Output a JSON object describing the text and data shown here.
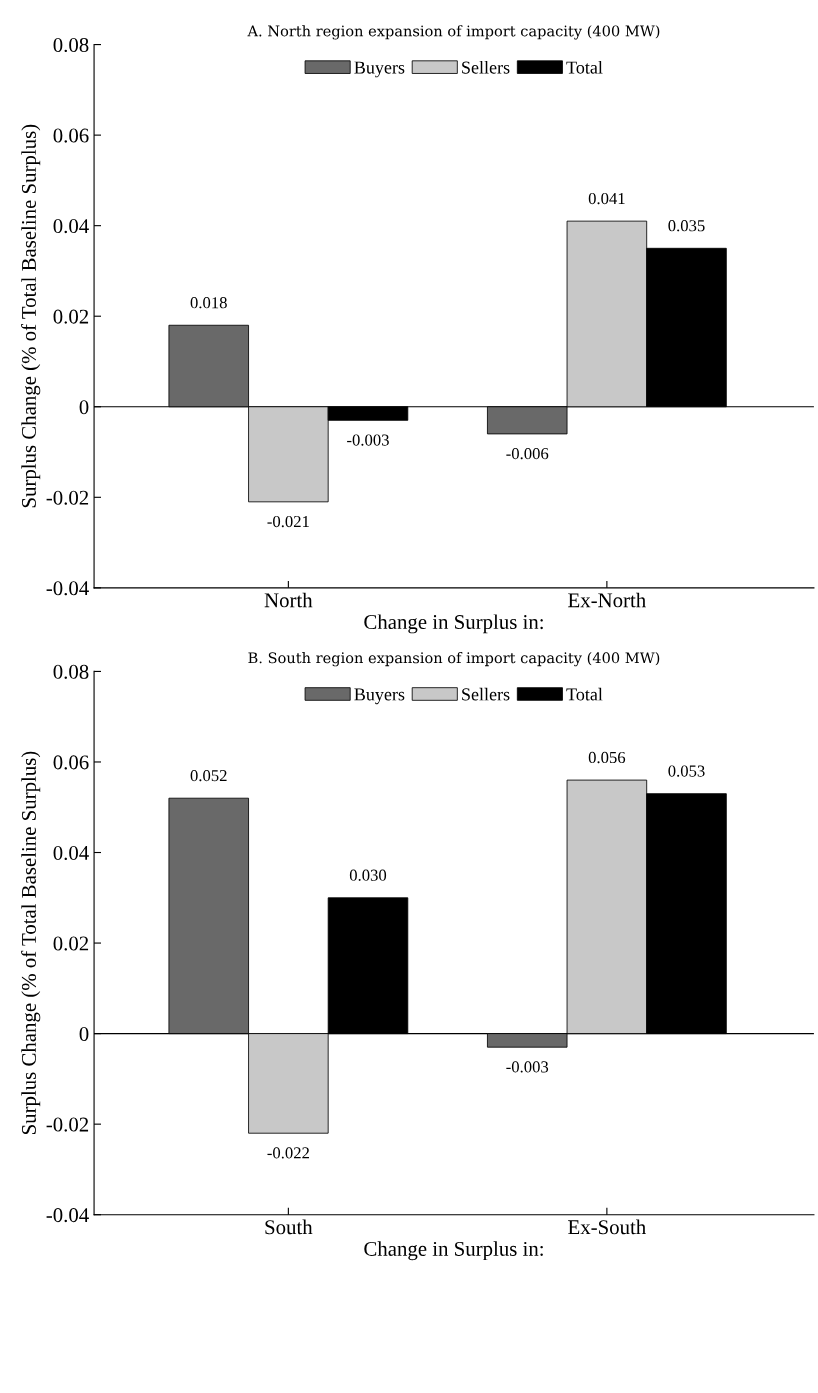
{
  "chart_data": [
    {
      "type": "bar",
      "title": "A. North region expansion of import capacity (400 MW)",
      "xlabel": "Change in Surplus in:",
      "ylabel": "Surplus Change (% of Total Baseline Surplus)",
      "categories": [
        "North",
        "Ex-North"
      ],
      "series": [
        {
          "name": "Buyers",
          "color": "#696969",
          "values": [
            0.018,
            -0.006
          ]
        },
        {
          "name": "Sellers",
          "color": "#c8c8c8",
          "values": [
            -0.021,
            0.041
          ]
        },
        {
          "name": "Total",
          "color": "#000000",
          "values": [
            -0.003,
            0.035
          ]
        }
      ],
      "ylim": [
        -0.04,
        0.08
      ],
      "yticks": [
        {
          "value": -0.04,
          "label": "-0.04"
        },
        {
          "value": -0.02,
          "label": "-0.02"
        },
        0,
        {
          "value": 0.02,
          "label": "0.02"
        },
        {
          "value": 0.04,
          "label": "0.04"
        },
        {
          "value": 0.06,
          "label": "0.06"
        },
        {
          "value": 0.08,
          "label": "0.08"
        }
      ],
      "value_labels": [
        [
          "0.018",
          "-0.006"
        ],
        [
          "-0.021",
          "0.041"
        ],
        [
          "-0.003",
          "0.035"
        ]
      ],
      "ref_lines": [
        {
          "axis": "y",
          "value": 0,
          "label": null,
          "color": "#000000"
        }
      ],
      "legend": "top",
      "grid": false
    },
    {
      "type": "bar",
      "title": "B. South region expansion of import capacity (400 MW)",
      "xlabel": "Change in Surplus in:",
      "ylabel": "Surplus Change (% of Total Baseline Surplus)",
      "categories": [
        "South",
        "Ex-South"
      ],
      "series": [
        {
          "name": "Buyers",
          "color": "#696969",
          "values": [
            0.052,
            -0.003
          ]
        },
        {
          "name": "Sellers",
          "color": "#c8c8c8",
          "values": [
            -0.022,
            0.056
          ]
        },
        {
          "name": "Total",
          "color": "#000000",
          "values": [
            0.03,
            0.053
          ]
        }
      ],
      "ylim": [
        -0.04,
        0.08
      ],
      "yticks": [
        {
          "value": -0.04,
          "label": "-0.04"
        },
        {
          "value": -0.02,
          "label": "-0.02"
        },
        0,
        {
          "value": 0.02,
          "label": "0.02"
        },
        {
          "value": 0.04,
          "label": "0.04"
        },
        {
          "value": 0.06,
          "label": "0.06"
        },
        {
          "value": 0.08,
          "label": "0.08"
        }
      ],
      "value_labels": [
        [
          "0.052",
          "-0.003"
        ],
        [
          "-0.022",
          "0.056"
        ],
        [
          "0.030",
          "0.053"
        ]
      ],
      "ref_lines": [
        {
          "axis": "y",
          "value": 0,
          "label": null,
          "color": "#000000"
        }
      ],
      "legend": "top",
      "grid": false
    }
  ]
}
